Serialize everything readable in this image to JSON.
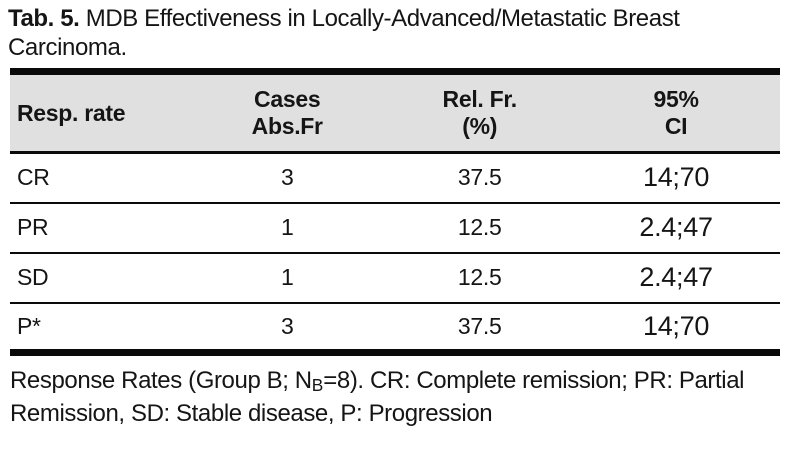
{
  "title": {
    "tag": "Tab. 5.",
    "text": "MDB Effectiveness in Locally-Advanced/Metastatic Breast Carcinoma."
  },
  "table": {
    "header": {
      "col1": "Resp. rate",
      "col2_line1": "Cases",
      "col2_line2": "Abs.Fr",
      "col3_line1": "Rel. Fr.",
      "col3_line2": "(%)",
      "col4_line1": "95%",
      "col4_line2": "CI"
    },
    "rows": [
      {
        "resp": "CR",
        "cases": "3",
        "rel_fr": "37.5",
        "ci": "14;70"
      },
      {
        "resp": "PR",
        "cases": "1",
        "rel_fr": "12.5",
        "ci": "2.4;47"
      },
      {
        "resp": "SD",
        "cases": "1",
        "rel_fr": "12.5",
        "ci": "2.4;47"
      },
      {
        "resp": "P*",
        "cases": "3",
        "rel_fr": "37.5",
        "ci": "14;70"
      }
    ]
  },
  "footnote": {
    "before_sub": "Response Rates (Group B; N",
    "sub": "B",
    "after_sub": "=8). CR: Complete remission; PR: Partial Remission, SD: Stable disease, P: Progression"
  },
  "colors": {
    "header_bg": "#e0e0e0",
    "border": "#0a0a0a",
    "text": "#151515",
    "page_bg": "#ffffff"
  }
}
